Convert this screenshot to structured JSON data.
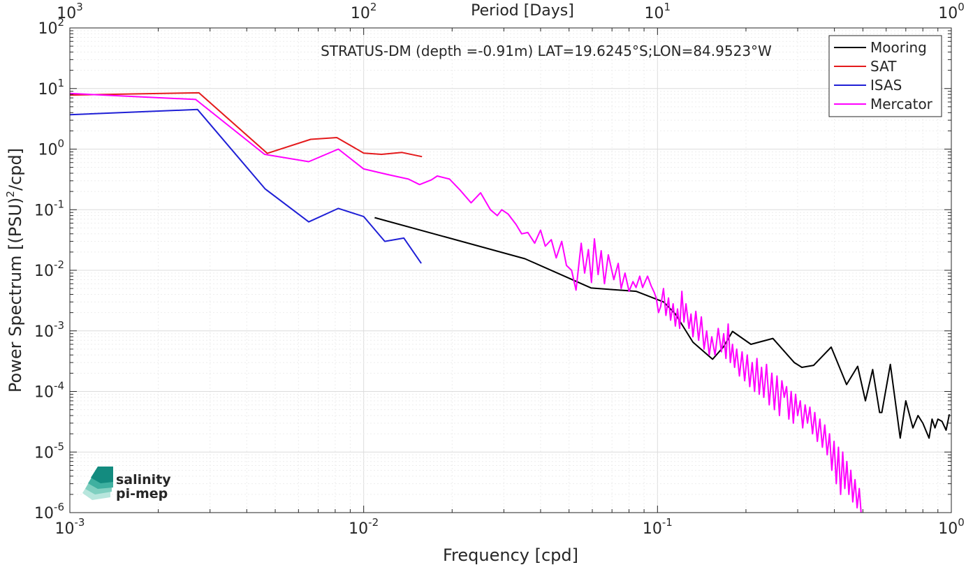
{
  "chart_data": {
    "type": "line",
    "x_scale": "log",
    "y_scale": "log",
    "xlim": [
      0.001,
      1
    ],
    "ylim": [
      1e-06,
      100
    ],
    "xlabel": "Frequency [cpd]",
    "ylabel_main": "Power Spectrum [(PSU)",
    "ylabel_sup": "2",
    "ylabel_end": "/cpd]",
    "top_xlabel": "Period [Days]",
    "annotation": "STRATUS-DM (depth =-0.91m) LAT=19.6245°S;LON=84.9523°W",
    "grid": true,
    "legend_position": "top-right",
    "x_ticks": [
      {
        "value": 0.001,
        "base": "10",
        "exp": "-3"
      },
      {
        "value": 0.01,
        "base": "10",
        "exp": "-2"
      },
      {
        "value": 0.1,
        "base": "10",
        "exp": "-1"
      },
      {
        "value": 1,
        "base": "10",
        "exp": "0"
      }
    ],
    "top_ticks": [
      {
        "value": 0.001,
        "base": "10",
        "exp": "3"
      },
      {
        "value": 0.01,
        "base": "10",
        "exp": "2"
      },
      {
        "value": 0.1,
        "base": "10",
        "exp": "1"
      },
      {
        "value": 1,
        "base": "10",
        "exp": "0"
      }
    ],
    "y_ticks": [
      {
        "value": 1e-06,
        "base": "10",
        "exp": "-6"
      },
      {
        "value": 1e-05,
        "base": "10",
        "exp": "-5"
      },
      {
        "value": 0.0001,
        "base": "10",
        "exp": "-4"
      },
      {
        "value": 0.001,
        "base": "10",
        "exp": "-3"
      },
      {
        "value": 0.01,
        "base": "10",
        "exp": "-2"
      },
      {
        "value": 0.1,
        "base": "10",
        "exp": "-1"
      },
      {
        "value": 1,
        "base": "10",
        "exp": "0"
      },
      {
        "value": 10,
        "base": "10",
        "exp": "1"
      },
      {
        "value": 100,
        "base": "10",
        "exp": "2"
      }
    ],
    "series": [
      {
        "name": "Mooring",
        "color": "#000000",
        "points": [
          [
            0.0109,
            0.074
          ],
          [
            0.0354,
            0.0155
          ],
          [
            0.0595,
            0.0051
          ],
          [
            0.0845,
            0.0045
          ],
          [
            0.105,
            0.003
          ],
          [
            0.115,
            0.0019
          ],
          [
            0.132,
            0.00065
          ],
          [
            0.154,
            0.00034
          ],
          [
            0.168,
            0.00055
          ],
          [
            0.18,
            0.00098
          ],
          [
            0.208,
            0.0006
          ],
          [
            0.247,
            0.00075
          ],
          [
            0.292,
            0.0003
          ],
          [
            0.31,
            0.00025
          ],
          [
            0.34,
            0.00027
          ],
          [
            0.39,
            0.00054
          ],
          [
            0.44,
            0.00013
          ],
          [
            0.48,
            0.00026
          ],
          [
            0.51,
            7e-05
          ],
          [
            0.54,
            0.00023
          ],
          [
            0.57,
            4.5e-05
          ],
          [
            0.58,
            4.5e-05
          ],
          [
            0.62,
            0.00028
          ],
          [
            0.67,
            1.7e-05
          ],
          [
            0.7,
            7e-05
          ],
          [
            0.74,
            2.5e-05
          ],
          [
            0.77,
            4e-05
          ],
          [
            0.8,
            3e-05
          ],
          [
            0.84,
            1.7e-05
          ],
          [
            0.86,
            3.5e-05
          ],
          [
            0.88,
            2.5e-05
          ],
          [
            0.9,
            3.5e-05
          ],
          [
            0.93,
            3.2e-05
          ],
          [
            0.96,
            2.3e-05
          ],
          [
            0.985,
            4.2e-05
          ]
        ]
      },
      {
        "name": "SAT",
        "color": "#e41a1c",
        "points": [
          [
            0.001,
            7.8
          ],
          [
            0.00275,
            8.5
          ],
          [
            0.0047,
            0.85
          ],
          [
            0.0066,
            1.45
          ],
          [
            0.0081,
            1.55
          ],
          [
            0.01,
            0.86
          ],
          [
            0.0115,
            0.82
          ],
          [
            0.0135,
            0.88
          ],
          [
            0.0158,
            0.75
          ]
        ]
      },
      {
        "name": "ISAS",
        "color": "#1f1fd6",
        "points": [
          [
            0.001,
            3.7
          ],
          [
            0.00272,
            4.5
          ],
          [
            0.00462,
            0.22
          ],
          [
            0.0065,
            0.063
          ],
          [
            0.0082,
            0.105
          ],
          [
            0.01,
            0.077
          ],
          [
            0.0118,
            0.03
          ],
          [
            0.0137,
            0.034
          ],
          [
            0.0157,
            0.013
          ]
        ]
      },
      {
        "name": "Mercator",
        "color": "#ff00ff",
        "points": [
          [
            0.001,
            8.3
          ],
          [
            0.00268,
            6.6
          ],
          [
            0.0046,
            0.82
          ],
          [
            0.0065,
            0.62
          ],
          [
            0.0082,
            1.0
          ],
          [
            0.01,
            0.47
          ],
          [
            0.0121,
            0.38
          ],
          [
            0.0142,
            0.32
          ],
          [
            0.0155,
            0.26
          ],
          [
            0.017,
            0.31
          ],
          [
            0.0178,
            0.36
          ],
          [
            0.0196,
            0.32
          ],
          [
            0.0213,
            0.21
          ],
          [
            0.0232,
            0.13
          ],
          [
            0.025,
            0.19
          ],
          [
            0.027,
            0.1
          ],
          [
            0.0285,
            0.08
          ],
          [
            0.0295,
            0.1
          ],
          [
            0.031,
            0.085
          ],
          [
            0.033,
            0.057
          ],
          [
            0.0345,
            0.04
          ],
          [
            0.0362,
            0.042
          ],
          [
            0.0382,
            0.028
          ],
          [
            0.04,
            0.046
          ],
          [
            0.0415,
            0.025
          ],
          [
            0.0435,
            0.032
          ],
          [
            0.0452,
            0.016
          ],
          [
            0.0472,
            0.03
          ],
          [
            0.049,
            0.012
          ],
          [
            0.051,
            0.01
          ],
          [
            0.0528,
            0.0047
          ],
          [
            0.055,
            0.028
          ],
          [
            0.0565,
            0.009
          ],
          [
            0.0582,
            0.022
          ],
          [
            0.0596,
            0.0063
          ],
          [
            0.061,
            0.033
          ],
          [
            0.0628,
            0.0085
          ],
          [
            0.0643,
            0.021
          ],
          [
            0.066,
            0.006
          ],
          [
            0.068,
            0.018
          ],
          [
            0.071,
            0.007
          ],
          [
            0.0735,
            0.013
          ],
          [
            0.0752,
            0.005
          ],
          [
            0.0775,
            0.009
          ],
          [
            0.08,
            0.0045
          ],
          [
            0.0825,
            0.0065
          ],
          [
            0.0845,
            0.0052
          ],
          [
            0.087,
            0.008
          ],
          [
            0.089,
            0.0052
          ],
          [
            0.0925,
            0.008
          ],
          [
            0.0952,
            0.0055
          ],
          [
            0.0975,
            0.0043
          ],
          [
            0.099,
            0.0035
          ],
          [
            0.1008,
            0.002
          ],
          [
            0.1025,
            0.0025
          ],
          [
            0.1048,
            0.005
          ],
          [
            0.1068,
            0.0018
          ],
          [
            0.109,
            0.0035
          ],
          [
            0.1108,
            0.0015
          ],
          [
            0.113,
            0.0028
          ],
          [
            0.115,
            0.0012
          ],
          [
            0.117,
            0.0023
          ],
          [
            0.119,
            0.0011
          ],
          [
            0.121,
            0.0045
          ],
          [
            0.123,
            0.0014
          ],
          [
            0.125,
            0.0028
          ],
          [
            0.128,
            0.0011
          ],
          [
            0.13,
            0.0019
          ],
          [
            0.132,
            0.0008
          ],
          [
            0.135,
            0.0021
          ],
          [
            0.138,
            0.0007
          ],
          [
            0.141,
            0.0017
          ],
          [
            0.144,
            0.0005
          ],
          [
            0.147,
            0.001
          ],
          [
            0.15,
            0.0004
          ],
          [
            0.153,
            0.0008
          ],
          [
            0.157,
            0.0004
          ],
          [
            0.161,
            0.0011
          ],
          [
            0.165,
            0.00045
          ],
          [
            0.168,
            0.0009
          ],
          [
            0.171,
            0.00035
          ],
          [
            0.174,
            0.0013
          ],
          [
            0.177,
            0.0003
          ],
          [
            0.18,
            0.0006
          ],
          [
            0.183,
            0.00025
          ],
          [
            0.186,
            0.0005
          ],
          [
            0.19,
            0.00018
          ],
          [
            0.194,
            0.00045
          ],
          [
            0.198,
            0.00015
          ],
          [
            0.202,
            0.0004
          ],
          [
            0.206,
            0.00012
          ],
          [
            0.21,
            0.0003
          ],
          [
            0.214,
            0.0001
          ],
          [
            0.218,
            0.00035
          ],
          [
            0.222,
            9e-05
          ],
          [
            0.226,
            0.00025
          ],
          [
            0.23,
            8e-05
          ],
          [
            0.235,
            0.00028
          ],
          [
            0.24,
            6e-05
          ],
          [
            0.245,
            0.0002
          ],
          [
            0.25,
            5e-05
          ],
          [
            0.255,
            0.00018
          ],
          [
            0.26,
            4e-05
          ],
          [
            0.265,
            0.00015
          ],
          [
            0.27,
            8e-05
          ],
          [
            0.275,
            0.00012
          ],
          [
            0.28,
            3.5e-05
          ],
          [
            0.285,
            0.0001
          ],
          [
            0.29,
            3e-05
          ],
          [
            0.295,
            9e-05
          ],
          [
            0.3,
            4e-05
          ],
          [
            0.306,
            7e-05
          ],
          [
            0.312,
            2.5e-05
          ],
          [
            0.318,
            6e-05
          ],
          [
            0.324,
            3e-05
          ],
          [
            0.33,
            5.5e-05
          ],
          [
            0.337,
            2e-05
          ],
          [
            0.343,
            4.5e-05
          ],
          [
            0.35,
            1.5e-05
          ],
          [
            0.357,
            3.5e-05
          ],
          [
            0.364,
            1.2e-05
          ],
          [
            0.371,
            2.8e-05
          ],
          [
            0.378,
            9e-06
          ],
          [
            0.385,
            2e-05
          ],
          [
            0.392,
            5e-06
          ],
          [
            0.399,
            1.5e-05
          ],
          [
            0.406,
            3e-06
          ],
          [
            0.413,
            1.2e-05
          ],
          [
            0.42,
            2e-06
          ],
          [
            0.427,
            1e-05
          ],
          [
            0.434,
            2.5e-06
          ],
          [
            0.441,
            7e-06
          ],
          [
            0.448,
            2e-06
          ],
          [
            0.455,
            5e-06
          ],
          [
            0.462,
            1.5e-06
          ],
          [
            0.47,
            3.5e-06
          ],
          [
            0.478,
            1.2e-06
          ],
          [
            0.486,
            2.5e-06
          ],
          [
            0.493,
            1e-06
          ]
        ]
      }
    ]
  },
  "logo": {
    "line1": "salinity",
    "line2": "pi-mep"
  }
}
